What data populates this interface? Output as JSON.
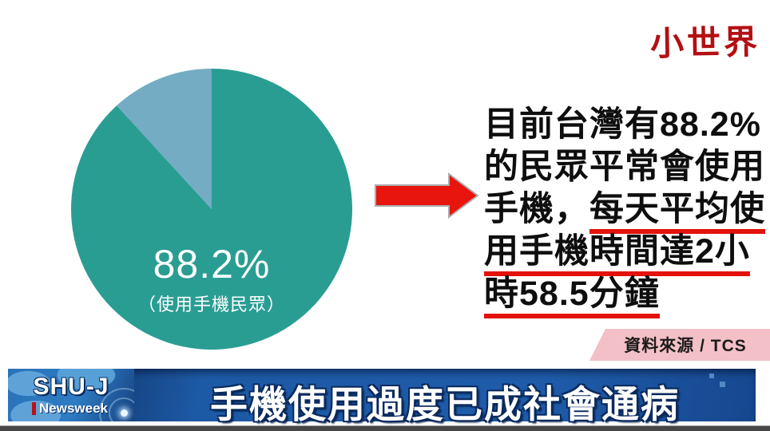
{
  "watermark": {
    "text": "小世界",
    "color": "#B30F14"
  },
  "chart_data": {
    "type": "pie",
    "title": "",
    "slices": [
      {
        "label": "使用手機民眾",
        "value": 88.2,
        "color": "#2A9D93"
      },
      {
        "label": "",
        "value": 11.8,
        "color": "#74ACC3"
      }
    ],
    "start_angle_deg": 0,
    "direction": "clockwise",
    "center_label": "88.2%",
    "center_sublabel": "（使用手機民眾）",
    "legend": "none"
  },
  "arrow": {
    "direction": "right",
    "fill": "#E8150F",
    "stroke": "#ABABAB"
  },
  "info_text": {
    "line1": "目前台灣有88.2%",
    "line2": "的民眾平常會使用",
    "line3_plain": "手機，",
    "line3_underlined": "每天平均使",
    "line4_underlined": "用手機時間達2小",
    "line5_underlined": "時58.5分鐘",
    "underline_color": "#E3120B"
  },
  "source_badge": {
    "label": "資料來源 / TCS",
    "background": "#F4C0C7"
  },
  "banner": {
    "title": "手機使用過度已成社會通病",
    "background": "#1E5BA8",
    "logo_line1": "SHU-J",
    "logo_line2": "Newsweek"
  }
}
